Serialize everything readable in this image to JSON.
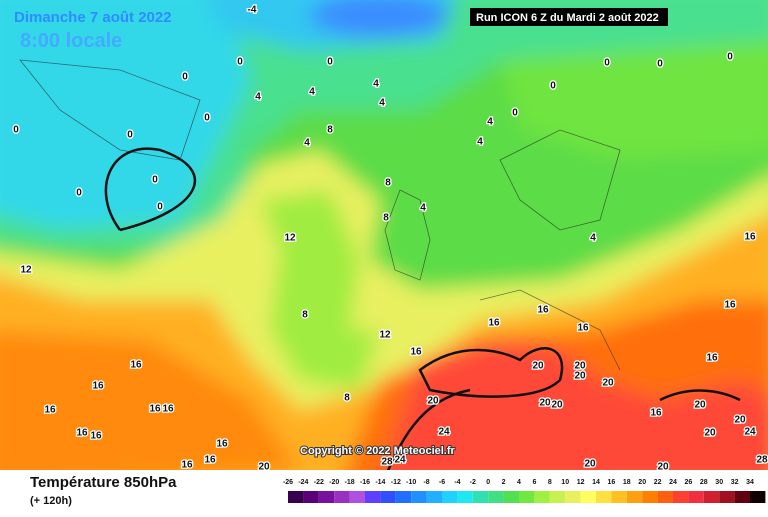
{
  "header": {
    "date": "Dimanche 7 août 2022",
    "time": "8:00 locale",
    "run": "Run ICON 6 Z du Mardi 2 août 2022"
  },
  "copyright": "Copyright © 2022 Meteociel.fr",
  "footer": {
    "title": "Température 850hPa",
    "lead": "(+ 120h)"
  },
  "map": {
    "labels": [
      -4,
      0,
      0,
      0,
      4,
      4,
      4,
      4,
      0,
      0,
      0,
      0,
      0,
      0,
      0,
      0,
      0,
      0,
      0,
      8,
      4,
      4,
      4,
      8,
      8,
      4,
      4,
      12,
      12,
      16,
      8,
      12,
      8,
      16,
      16,
      16,
      16,
      16,
      16,
      16,
      16,
      16,
      16,
      16,
      16,
      16,
      16,
      16,
      16,
      20,
      20,
      20,
      20,
      20,
      20,
      20,
      20,
      24,
      16,
      20,
      20,
      20,
      24,
      24,
      20,
      20,
      28,
      28
    ]
  },
  "legend": {
    "ticks": [
      -26,
      -24,
      -22,
      -20,
      -18,
      -16,
      -14,
      -12,
      -10,
      -8,
      -6,
      -4,
      -2,
      0,
      2,
      4,
      6,
      8,
      10,
      12,
      14,
      16,
      18,
      20,
      22,
      24,
      26,
      28,
      30,
      32,
      34
    ],
    "colors": [
      "#3a0050",
      "#5a0078",
      "#7a10a0",
      "#9a30c0",
      "#b050e0",
      "#6040ff",
      "#3050ff",
      "#2070ff",
      "#2090ff",
      "#20b0ff",
      "#20d0ff",
      "#20e8f0",
      "#30e0b0",
      "#40e080",
      "#50e050",
      "#70e840",
      "#a0f040",
      "#c8f050",
      "#e8f060",
      "#ffff60",
      "#ffe040",
      "#ffc020",
      "#ffa010",
      "#ff8000",
      "#ff6010",
      "#ff4030",
      "#f03040",
      "#d02030",
      "#a01020",
      "#600010",
      "#100000"
    ]
  }
}
